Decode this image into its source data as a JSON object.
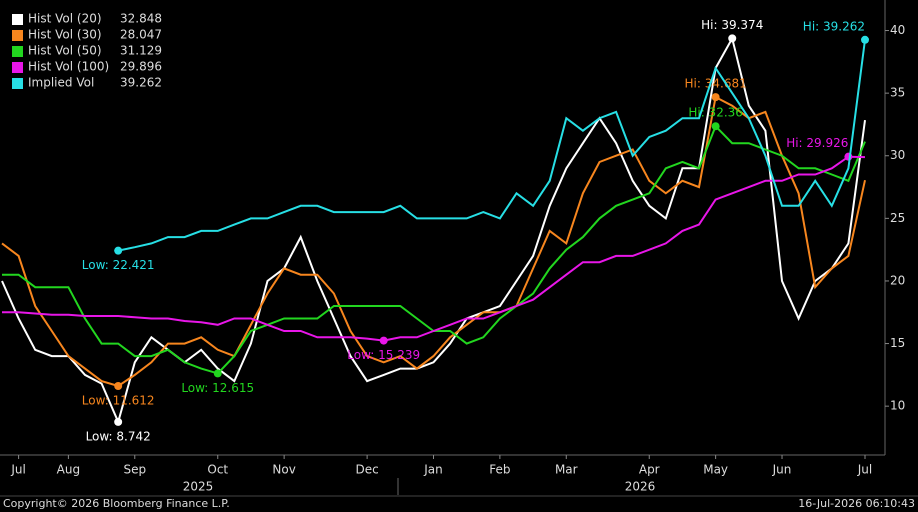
{
  "chart_data": {
    "type": "line",
    "categories": [
      null,
      "Jul",
      null,
      null,
      "Aug",
      null,
      null,
      null,
      "Sep",
      null,
      null,
      null,
      null,
      "Oct",
      null,
      null,
      null,
      "Nov",
      null,
      null,
      null,
      null,
      "Dec",
      null,
      null,
      null,
      "Jan",
      null,
      null,
      null,
      "Feb",
      null,
      null,
      null,
      "Mar",
      null,
      null,
      null,
      null,
      "Apr",
      null,
      null,
      null,
      "May",
      null,
      null,
      null,
      "Jun",
      null,
      null,
      null,
      null,
      "Jul"
    ],
    "year_labels": [
      "2025",
      "2026"
    ],
    "series": [
      {
        "name": "Hist Vol (20)",
        "color": "#ffffff",
        "hi_label": "Hi: 39.374",
        "low_label": "Low: 8.742",
        "values": [
          20,
          17,
          14.5,
          14,
          14,
          12.5,
          11.8,
          8.742,
          13.5,
          15.5,
          14.5,
          13.5,
          14.5,
          13,
          12,
          15,
          20,
          21,
          23.5,
          20,
          17,
          14,
          12,
          12.5,
          13,
          13,
          13.5,
          15,
          17,
          17.5,
          18,
          20,
          22,
          26,
          29,
          31,
          33,
          31,
          28,
          26,
          25,
          29,
          29,
          37,
          39.374,
          34,
          32,
          20,
          17,
          20,
          21,
          23,
          32.848
        ]
      },
      {
        "name": "Hist Vol (30)",
        "color": "#f7861e",
        "hi_label": "Hi: 34.681",
        "low_label": "Low: 11.612",
        "values": [
          23,
          22,
          18,
          16,
          14,
          13,
          12,
          11.612,
          12.5,
          13.5,
          15,
          15,
          15.5,
          14.5,
          14,
          16.5,
          19,
          21,
          20.5,
          20.5,
          19,
          16,
          14,
          13.5,
          14,
          13,
          14,
          15.5,
          16.5,
          17.5,
          17.5,
          18,
          21,
          24,
          23,
          27,
          29.5,
          30,
          30.5,
          28,
          27,
          28,
          27.5,
          34.681,
          34,
          33,
          33.5,
          30,
          27,
          19.5,
          21,
          22,
          28.047
        ]
      },
      {
        "name": "Hist Vol (50)",
        "color": "#22d61f",
        "hi_label": "Hi: 32.36",
        "low_label": "Low: 12.615",
        "values": [
          20.5,
          20.5,
          19.5,
          19.5,
          19.5,
          17,
          15,
          15,
          14,
          14,
          14.5,
          13.5,
          13,
          12.615,
          14,
          16,
          16.5,
          17,
          17,
          17,
          18,
          18,
          18,
          18,
          18,
          17,
          16,
          16,
          15,
          15.5,
          17,
          18,
          19,
          21,
          22.5,
          23.5,
          25,
          26,
          26.5,
          27,
          29,
          29.5,
          29,
          32.36,
          31,
          31,
          30.5,
          30,
          29,
          29,
          28.5,
          28,
          31.129
        ]
      },
      {
        "name": "Hist Vol (100)",
        "color": "#e816e8",
        "hi_label": "Hi: 29.926",
        "low_label": "Low: 15.239",
        "values": [
          17.5,
          17.5,
          17.4,
          17.3,
          17.3,
          17.2,
          17.2,
          17.2,
          17.1,
          17,
          17,
          16.8,
          16.7,
          16.5,
          17,
          17,
          16.5,
          16,
          16,
          15.5,
          15.5,
          15.5,
          15.4,
          15.239,
          15.5,
          15.5,
          16,
          16.5,
          17,
          17,
          17.5,
          18,
          18.5,
          19.5,
          20.5,
          21.5,
          21.5,
          22,
          22,
          22.5,
          23,
          24,
          24.5,
          26.5,
          27,
          27.5,
          28,
          28,
          28.5,
          28.5,
          29,
          29.926,
          29.896
        ]
      },
      {
        "name": "Implied Vol",
        "color": "#27dfe5",
        "hi_label": "Hi: 39.262",
        "low_label": "Low: 22.421",
        "values": [
          null,
          null,
          null,
          null,
          null,
          null,
          null,
          22.421,
          22.7,
          23,
          23.5,
          23.5,
          24,
          24,
          24.5,
          25,
          25,
          25.5,
          26,
          26,
          25.5,
          25.5,
          25.5,
          25.5,
          26,
          25,
          25,
          25,
          25,
          25.5,
          25,
          27,
          26,
          28,
          33,
          32,
          33,
          33.5,
          30,
          31.5,
          32,
          33,
          33,
          37,
          35,
          33,
          30,
          26,
          26,
          28,
          26,
          29,
          39.262
        ]
      }
    ],
    "ylim": [
      6.1,
      41.8
    ],
    "yticks": [
      10,
      15,
      20,
      25,
      30,
      35,
      40
    ],
    "grid": false,
    "footer_left": "Copyright© 2026 Bloomberg Finance L.P.",
    "footer_right": "16-Jul-2026 06:10:43"
  }
}
